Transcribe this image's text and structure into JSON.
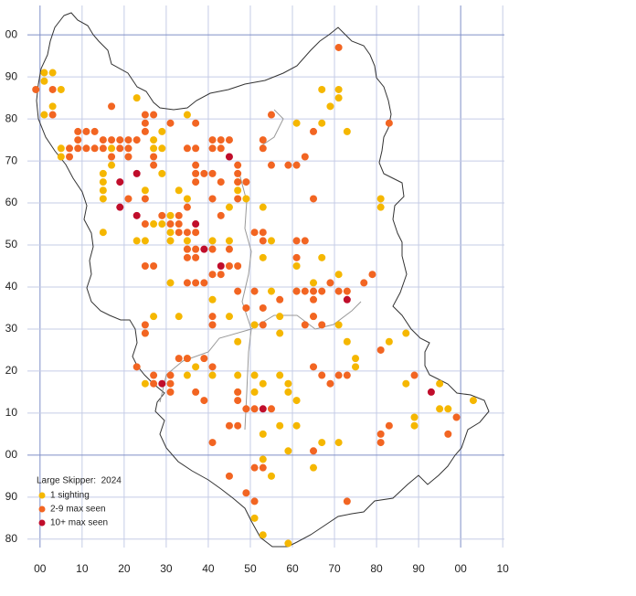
{
  "chart_data": {
    "type": "scatter",
    "legend_title": "Large Skipper:  2024",
    "xlim": [
      -3,
      110.4
    ],
    "ylim": [
      -22,
      107
    ],
    "xticks": [
      {
        "value": 0,
        "label": "00"
      },
      10,
      20,
      30,
      40,
      50,
      60,
      70,
      80,
      90,
      {
        "value": 100,
        "label": "00"
      },
      {
        "value": 110,
        "label": "10"
      }
    ],
    "yticks": [
      {
        "value": 100,
        "label": "00"
      },
      90,
      80,
      70,
      60,
      50,
      40,
      30,
      20,
      10,
      {
        "value": 0,
        "label": "00"
      },
      {
        "value": -10,
        "label": "90"
      },
      {
        "value": -20,
        "label": "80"
      }
    ],
    "grid": true,
    "legend": "lower left",
    "series": [
      {
        "name": "1 sighting",
        "color": "#f5b700",
        "x": [
          1,
          3,
          1,
          5,
          1,
          3,
          23,
          71,
          67,
          71,
          69,
          73,
          67,
          61,
          35,
          29,
          27,
          27,
          29,
          5,
          5,
          17,
          17,
          15,
          15,
          15,
          15,
          15,
          29,
          25,
          35,
          33,
          31,
          29,
          27,
          31,
          25,
          23,
          31,
          35,
          35,
          41,
          45,
          47,
          47,
          49,
          53,
          55,
          53,
          61,
          67,
          65,
          71,
          61,
          55,
          57,
          51,
          57,
          65,
          71,
          73,
          75,
          75,
          83,
          87,
          81,
          81,
          45,
          41,
          45,
          31,
          33,
          27,
          25,
          35,
          37,
          35,
          41,
          47,
          51,
          57,
          51,
          47,
          59,
          59,
          61,
          57,
          61,
          53,
          53,
          59,
          55,
          67,
          71,
          65,
          51,
          53,
          59,
          89,
          89,
          95,
          97,
          103,
          87,
          95,
          25,
          47,
          53
        ],
        "y": [
          91,
          91,
          89,
          87,
          81,
          83,
          85,
          87,
          87,
          85,
          83,
          77,
          79,
          79,
          81,
          77,
          75,
          73,
          73,
          73,
          71,
          73,
          69,
          67,
          65,
          63,
          61,
          53,
          67,
          63,
          61,
          63,
          57,
          55,
          55,
          53,
          51,
          51,
          51,
          49,
          51,
          51,
          51,
          63,
          65,
          61,
          59,
          51,
          47,
          45,
          47,
          41,
          43,
          39,
          39,
          33,
          31,
          29,
          33,
          31,
          27,
          23,
          21,
          27,
          29,
          61,
          59,
          33,
          37,
          59,
          41,
          33,
          33,
          29,
          23,
          21,
          19,
          19,
          19,
          19,
          19,
          15,
          15,
          17,
          15,
          13,
          7,
          7,
          5,
          -1,
          1,
          -5,
          3,
          3,
          -3,
          -15,
          -19,
          -21,
          9,
          7,
          11,
          11,
          13,
          17,
          17,
          17,
          27,
          17
        ]
      },
      {
        "name": "2-9 max seen",
        "color": "#f26522",
        "x": [
          -1,
          3,
          3,
          17,
          9,
          11,
          13,
          9,
          7,
          9,
          11,
          13,
          15,
          17,
          15,
          19,
          21,
          23,
          19,
          21,
          17,
          7,
          21,
          25,
          27,
          25,
          31,
          37,
          25,
          27,
          27,
          35,
          37,
          41,
          43,
          45,
          41,
          43,
          53,
          53,
          47,
          47,
          55,
          59,
          61,
          63,
          55,
          65,
          37,
          37,
          41,
          39,
          37,
          43,
          47,
          49,
          41,
          47,
          35,
          43,
          25,
          21,
          25,
          29,
          33,
          33,
          31,
          37,
          35,
          33,
          35,
          37,
          41,
          45,
          51,
          53,
          53,
          61,
          37,
          35,
          25,
          27,
          41,
          43,
          45,
          47,
          35,
          37,
          39,
          47,
          51,
          61,
          63,
          65,
          67,
          65,
          57,
          69,
          71,
          73,
          77,
          79,
          53,
          49,
          41,
          41,
          53,
          63,
          65,
          67,
          25,
          25,
          33,
          35,
          39,
          31,
          27,
          23,
          27,
          31,
          31,
          37,
          41,
          39,
          47,
          47,
          49,
          51,
          55,
          47,
          45,
          65,
          67,
          69,
          71,
          73,
          81,
          81,
          81,
          83,
          97,
          99,
          89,
          41,
          45,
          51,
          53,
          65,
          73,
          49,
          51,
          71,
          83,
          65,
          63,
          61
        ],
        "y": [
          87,
          87,
          81,
          83,
          75,
          77,
          77,
          77,
          73,
          73,
          73,
          73,
          73,
          75,
          75,
          75,
          75,
          75,
          73,
          73,
          71,
          71,
          71,
          81,
          81,
          79,
          79,
          79,
          77,
          71,
          69,
          73,
          73,
          75,
          75,
          75,
          73,
          73,
          75,
          73,
          69,
          67,
          69,
          69,
          69,
          71,
          81,
          77,
          69,
          67,
          67,
          67,
          65,
          65,
          65,
          65,
          61,
          61,
          59,
          57,
          61,
          61,
          55,
          57,
          57,
          55,
          55,
          53,
          53,
          53,
          49,
          49,
          49,
          49,
          53,
          53,
          51,
          51,
          47,
          47,
          45,
          45,
          43,
          43,
          45,
          45,
          41,
          41,
          41,
          39,
          39,
          39,
          39,
          39,
          39,
          37,
          37,
          41,
          39,
          39,
          41,
          43,
          35,
          35,
          33,
          31,
          31,
          31,
          33,
          31,
          31,
          29,
          23,
          23,
          23,
          19,
          19,
          21,
          17,
          15,
          17,
          15,
          21,
          13,
          15,
          13,
          11,
          11,
          11,
          7,
          7,
          21,
          19,
          17,
          19,
          19,
          25,
          5,
          3,
          7,
          5,
          9,
          19,
          3,
          -5,
          -3,
          -3,
          1,
          -11,
          -9,
          -11,
          97,
          79,
          61,
          51,
          47
        ]
      },
      {
        "name": "10+ max seen",
        "color": "#c00d2b",
        "x": [
          23,
          19,
          23,
          19,
          37,
          39,
          43,
          45,
          29,
          53,
          73,
          93
        ],
        "y": [
          67,
          65,
          57,
          59,
          55,
          49,
          45,
          71,
          17,
          11,
          37,
          15
        ]
      }
    ]
  }
}
